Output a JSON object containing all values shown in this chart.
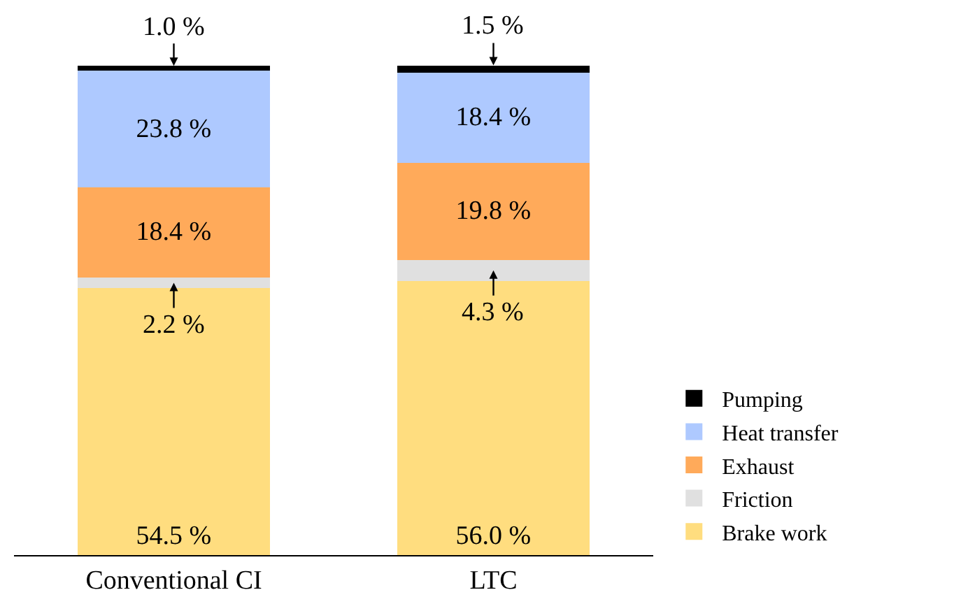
{
  "chart_data": {
    "type": "bar",
    "stacked": true,
    "categories": [
      "Conventional CI",
      "LTC"
    ],
    "series": [
      {
        "name": "Brake work",
        "color": "#ffdd7f",
        "values": [
          54.5,
          56.0
        ],
        "value_labels": [
          "54.5 %",
          "56.0 %"
        ]
      },
      {
        "name": "Friction",
        "color": "#e0e0e0",
        "values": [
          2.2,
          4.3
        ],
        "value_labels": [
          "2.2 %",
          "4.3 %"
        ]
      },
      {
        "name": "Exhaust",
        "color": "#ffaa5a",
        "values": [
          18.4,
          19.8
        ],
        "value_labels": [
          "18.4 %",
          "19.8 %"
        ]
      },
      {
        "name": "Heat transfer",
        "color": "#aec9ff",
        "values": [
          23.8,
          18.4
        ],
        "value_labels": [
          "23.8 %",
          "18.4 %"
        ]
      },
      {
        "name": "Pumping",
        "color": "#000000",
        "values": [
          1.0,
          1.5
        ],
        "value_labels": [
          "1.0 %",
          "1.5 %"
        ]
      }
    ],
    "legend": "bottom right"
  }
}
